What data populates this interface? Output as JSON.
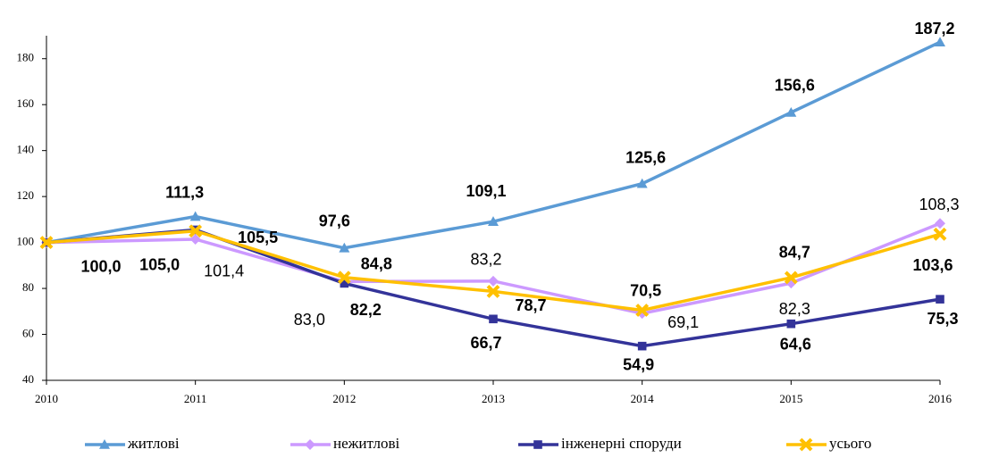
{
  "chart_data": {
    "type": "line",
    "categories": [
      "2010",
      "2011",
      "2012",
      "2013",
      "2014",
      "2015",
      "2016"
    ],
    "ylim": [
      40,
      190
    ],
    "yticks": [
      40,
      60,
      80,
      100,
      120,
      140,
      160,
      180
    ],
    "legend": "bottom",
    "series": [
      {
        "name": "житлові",
        "color": "#5b9bd5",
        "marker": "triangle",
        "bold": true,
        "values": [
          100.0,
          111.3,
          97.6,
          109.1,
          125.6,
          156.6,
          187.2
        ],
        "value_labels": [
          null,
          "111,3",
          "97,6",
          "109,1",
          "125,6",
          "156,6",
          "187,2"
        ]
      },
      {
        "name": "нежитлові",
        "color": "#cc99ff",
        "marker": "diamond",
        "bold": false,
        "values": [
          100.0,
          101.4,
          83.0,
          83.2,
          69.1,
          82.3,
          108.3
        ],
        "value_labels": [
          null,
          "101,4",
          "83,0",
          "83,2",
          "69,1",
          "82,3",
          "108,3"
        ]
      },
      {
        "name": "інженерні споруди",
        "color": "#333399",
        "marker": "square",
        "bold": true,
        "values": [
          100.0,
          105.5,
          82.2,
          66.7,
          54.9,
          64.6,
          75.3
        ],
        "value_labels": [
          null,
          "105,5",
          "82,2",
          "66,7",
          "54,9",
          "64,6",
          "75,3"
        ]
      },
      {
        "name": "усього",
        "color": "#ffc000",
        "marker": "x",
        "bold": true,
        "values": [
          100.0,
          105.0,
          84.8,
          78.7,
          70.5,
          84.7,
          103.6
        ],
        "value_labels": [
          "100,0",
          "105,0",
          "84,8",
          "78,7",
          "70,5",
          "84,7",
          "103,6"
        ]
      }
    ]
  }
}
